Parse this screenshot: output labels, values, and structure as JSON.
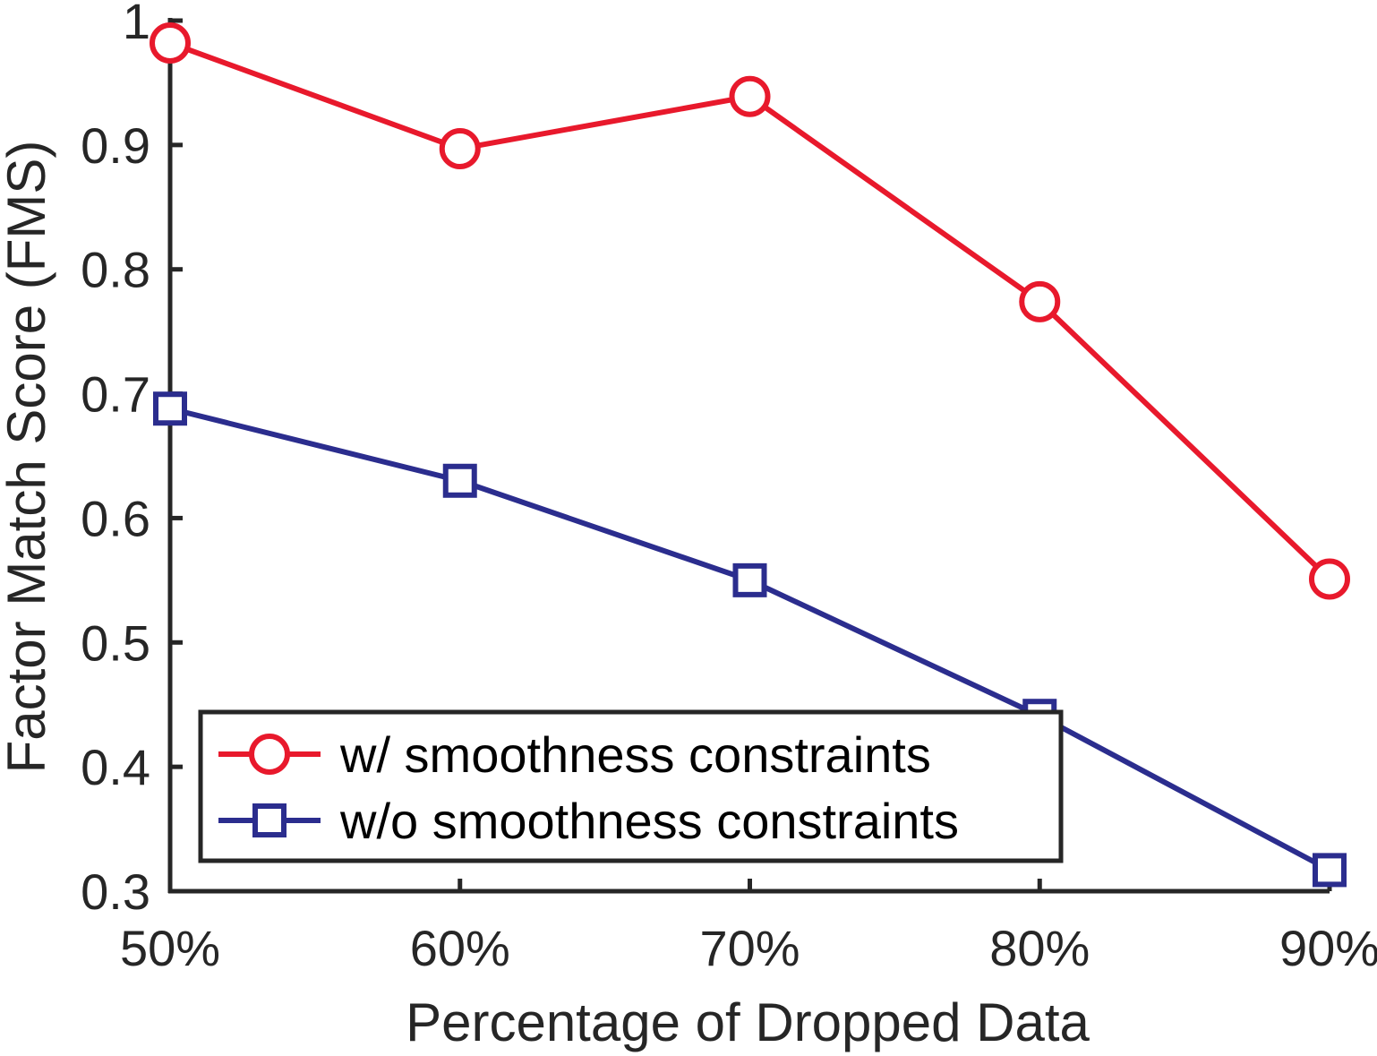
{
  "chart_data": {
    "type": "line",
    "xlabel": "Percentage of Dropped Data",
    "ylabel": "Factor Match Score (FMS)",
    "categories": [
      "50%",
      "60%",
      "70%",
      "80%",
      "90%"
    ],
    "ylim": [
      0.3,
      1.0
    ],
    "yticks": [
      0.3,
      0.4,
      0.5,
      0.6,
      0.7,
      0.8,
      0.9,
      1.0
    ],
    "ytick_labels": [
      "0.3",
      "0.4",
      "0.5",
      "0.6",
      "0.7",
      "0.8",
      "0.9",
      "1"
    ],
    "grid": false,
    "legend_position": "bottom-left",
    "series": [
      {
        "name": "w/ smoothness constraints",
        "values": [
          0.982,
          0.897,
          0.939,
          0.774,
          0.551
        ],
        "color": "#e8192c",
        "marker": "circle"
      },
      {
        "name": "w/o smoothness constraints",
        "values": [
          0.688,
          0.63,
          0.55,
          0.441,
          0.317
        ],
        "color": "#2b2d8e",
        "marker": "square"
      }
    ]
  }
}
